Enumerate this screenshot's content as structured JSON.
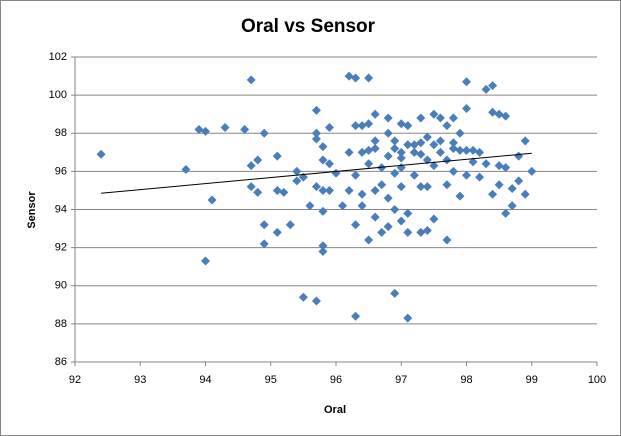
{
  "chart_data": {
    "type": "scatter",
    "title": "Oral vs Sensor",
    "x_label": "Oral",
    "y_label": "Sensor",
    "color": "#4a7ebb",
    "grid": true,
    "xlim": [
      92,
      100
    ],
    "xticks": [
      92,
      93,
      94,
      95,
      96,
      97,
      98,
      99,
      100
    ],
    "ylim": [
      86,
      102
    ],
    "yticks": [
      86,
      88,
      90,
      92,
      94,
      96,
      98,
      100,
      102
    ],
    "x": [
      92.4,
      93.7,
      93.9,
      94.0,
      94.0,
      94.1,
      94.3,
      94.6,
      94.7,
      94.7,
      94.8,
      94.7,
      94.8,
      94.9,
      94.9,
      94.9,
      95.1,
      95.1,
      95.1,
      95.2,
      95.3,
      95.4,
      95.4,
      95.5,
      95.5,
      95.6,
      95.7,
      95.7,
      95.7,
      95.7,
      95.7,
      95.8,
      95.8,
      95.8,
      95.8,
      95.8,
      95.8,
      95.9,
      95.9,
      95.9,
      96.0,
      96.1,
      96.2,
      96.2,
      96.2,
      96.3,
      96.3,
      96.3,
      96.3,
      96.3,
      96.4,
      96.4,
      96.4,
      96.4,
      96.5,
      96.5,
      96.5,
      96.5,
      96.6,
      96.6,
      96.6,
      96.6,
      96.7,
      96.7,
      96.7,
      96.8,
      96.8,
      96.8,
      96.8,
      96.8,
      96.9,
      96.9,
      96.9,
      96.9,
      97.0,
      97.0,
      97.0,
      97.0,
      97.0,
      97.1,
      97.1,
      97.1,
      97.1,
      97.1,
      97.2,
      97.2,
      97.3,
      97.3,
      97.3,
      97.3,
      97.4,
      97.4,
      97.4,
      97.4,
      97.5,
      97.5,
      97.5,
      97.5,
      97.6,
      97.6,
      97.7,
      97.7,
      97.7,
      97.7,
      97.8,
      97.8,
      97.8,
      97.9,
      97.9,
      97.9,
      98.0,
      98.0,
      98.0,
      98.0,
      98.1,
      98.1,
      98.2,
      98.2,
      98.3,
      98.3,
      98.4,
      98.4,
      98.4,
      98.5,
      98.5,
      98.5,
      98.6,
      98.6,
      98.6,
      98.7,
      98.7,
      98.8,
      98.8,
      98.9,
      98.9,
      99.0,
      96.6,
      97.2,
      97.6,
      96.9,
      97.3,
      97.8,
      96.5,
      97.0
    ],
    "y": [
      96.9,
      96.1,
      98.2,
      98.1,
      91.3,
      94.5,
      98.3,
      98.2,
      100.8,
      96.3,
      96.6,
      95.2,
      94.9,
      98.0,
      93.2,
      92.2,
      96.8,
      95.0,
      92.8,
      94.9,
      93.2,
      96.0,
      95.5,
      95.7,
      89.4,
      94.2,
      99.2,
      98.0,
      97.7,
      95.2,
      89.2,
      97.3,
      96.6,
      95.0,
      93.9,
      92.1,
      91.8,
      98.3,
      96.4,
      95.0,
      95.9,
      94.2,
      101.0,
      97.0,
      95.0,
      100.9,
      98.4,
      95.8,
      93.2,
      88.4,
      98.4,
      97.0,
      94.8,
      94.2,
      100.9,
      98.5,
      96.4,
      92.4,
      99.0,
      97.6,
      95.0,
      93.6,
      96.2,
      95.3,
      92.8,
      98.8,
      98.0,
      96.8,
      94.6,
      93.1,
      97.6,
      95.9,
      94.0,
      89.6,
      98.5,
      97.0,
      96.2,
      95.2,
      93.4,
      98.4,
      97.4,
      93.8,
      92.8,
      88.3,
      97.0,
      95.8,
      98.8,
      97.5,
      95.2,
      92.8,
      97.8,
      96.6,
      95.2,
      92.9,
      99.0,
      97.4,
      96.3,
      93.5,
      98.8,
      97.0,
      98.4,
      96.6,
      95.3,
      92.4,
      98.8,
      97.5,
      96.0,
      98.0,
      97.1,
      94.7,
      100.7,
      99.3,
      97.1,
      95.8,
      97.1,
      96.5,
      97.0,
      95.7,
      96.4,
      100.3,
      100.5,
      99.1,
      94.8,
      99.0,
      96.3,
      95.3,
      98.9,
      93.8,
      96.2,
      94.2,
      95.1,
      96.8,
      95.5,
      97.6,
      94.8,
      96.0,
      97.2,
      97.4,
      97.6,
      97.2,
      96.9,
      97.2,
      97.1,
      96.7
    ],
    "trendline": {
      "x": [
        92.4,
        99
      ],
      "y": [
        94.85,
        96.95
      ]
    }
  }
}
